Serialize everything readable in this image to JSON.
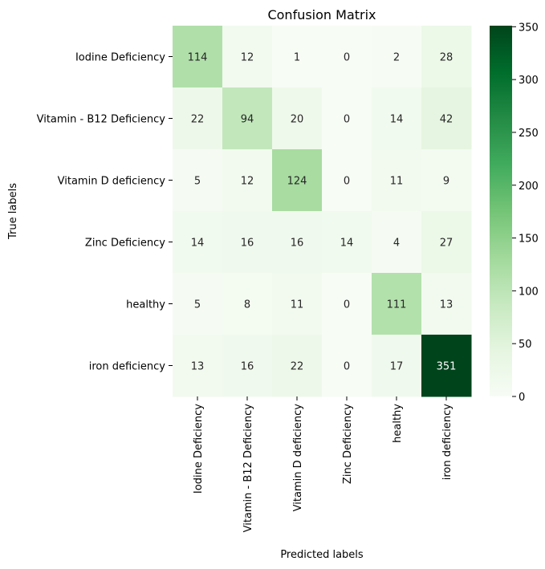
{
  "chart_data": {
    "type": "heatmap",
    "title": "Confusion Matrix",
    "xlabel": "Predicted labels",
    "ylabel": "True labels",
    "row_labels": [
      "Iodine Deficiency",
      "Vitamin - B12  Deficiency",
      "Vitamin D deficiency",
      "Zinc Deficiency",
      "healthy",
      "iron deficiency "
    ],
    "col_labels": [
      "Iodine Deficiency",
      "Vitamin - B12  Deficiency",
      "Vitamin D deficiency",
      "Zinc Deficiency",
      "healthy",
      "iron deficiency"
    ],
    "values": [
      [
        114,
        12,
        1,
        0,
        2,
        28
      ],
      [
        22,
        94,
        20,
        0,
        14,
        42
      ],
      [
        5,
        12,
        124,
        0,
        11,
        9
      ],
      [
        14,
        16,
        16,
        14,
        4,
        27
      ],
      [
        5,
        8,
        11,
        0,
        111,
        13
      ],
      [
        13,
        16,
        22,
        0,
        17,
        351
      ]
    ],
    "colorscale": "Greens",
    "vmin": 0,
    "vmax": 351,
    "colorbar_ticks": [
      0,
      50,
      100,
      150,
      200,
      250,
      300,
      350
    ],
    "grid": false
  }
}
